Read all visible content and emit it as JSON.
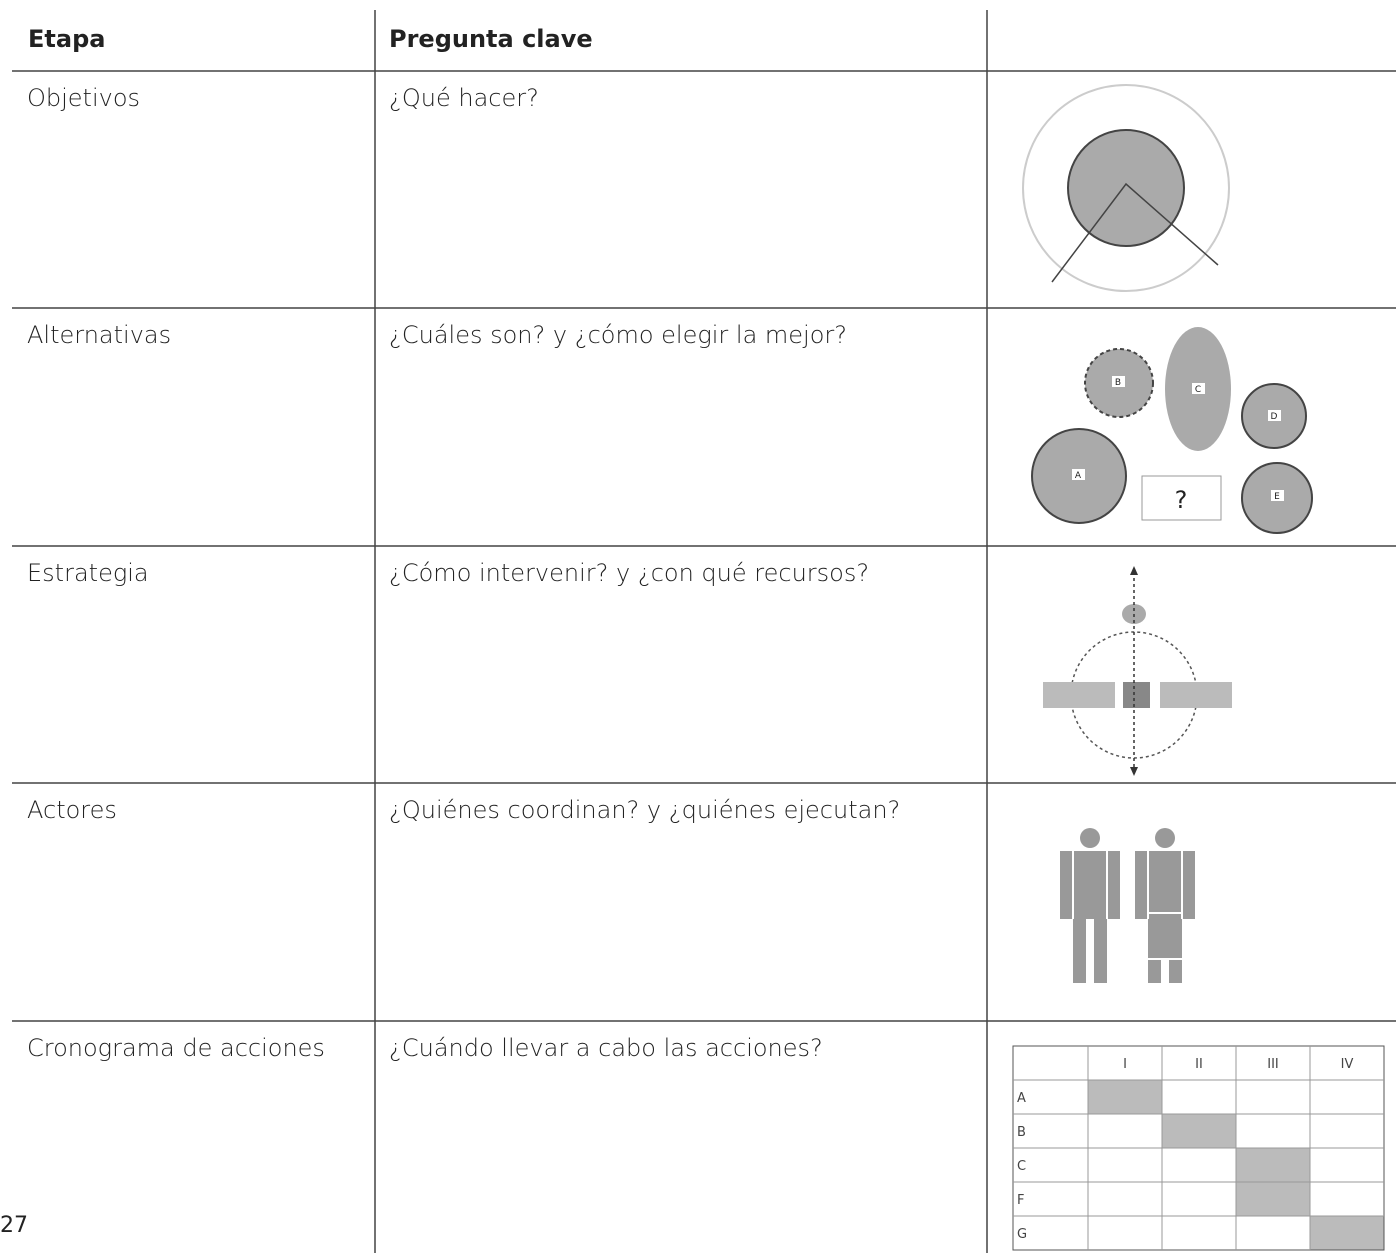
{
  "table": {
    "header": [
      "Etapa",
      "Pregunta clave"
    ],
    "rows": [
      [
        "Objetivos",
        "¿Qué hacer?"
      ],
      [
        "Alternativas",
        "¿Cuáles son? y ¿cómo elegir la mejor?"
      ],
      [
        "Estrategia",
        "¿Cómo intervenir? y ¿con qué recursos?"
      ],
      [
        "Actores",
        "¿Quiénes coordinan? y ¿quiénes ejecutan?"
      ],
      [
        "Cronograma de acciones",
        "¿Cuándo llevar a cabo las acciones?"
      ]
    ]
  },
  "illustrations": {
    "alternatives_labels": [
      "B",
      "C",
      "D",
      "A",
      "E"
    ],
    "question": "?",
    "schedule": {
      "columns": [
        "I",
        "II",
        "III",
        "IV"
      ],
      "rows": [
        "A",
        "B",
        "C",
        "F",
        "G"
      ]
    }
  },
  "page_number": "27"
}
